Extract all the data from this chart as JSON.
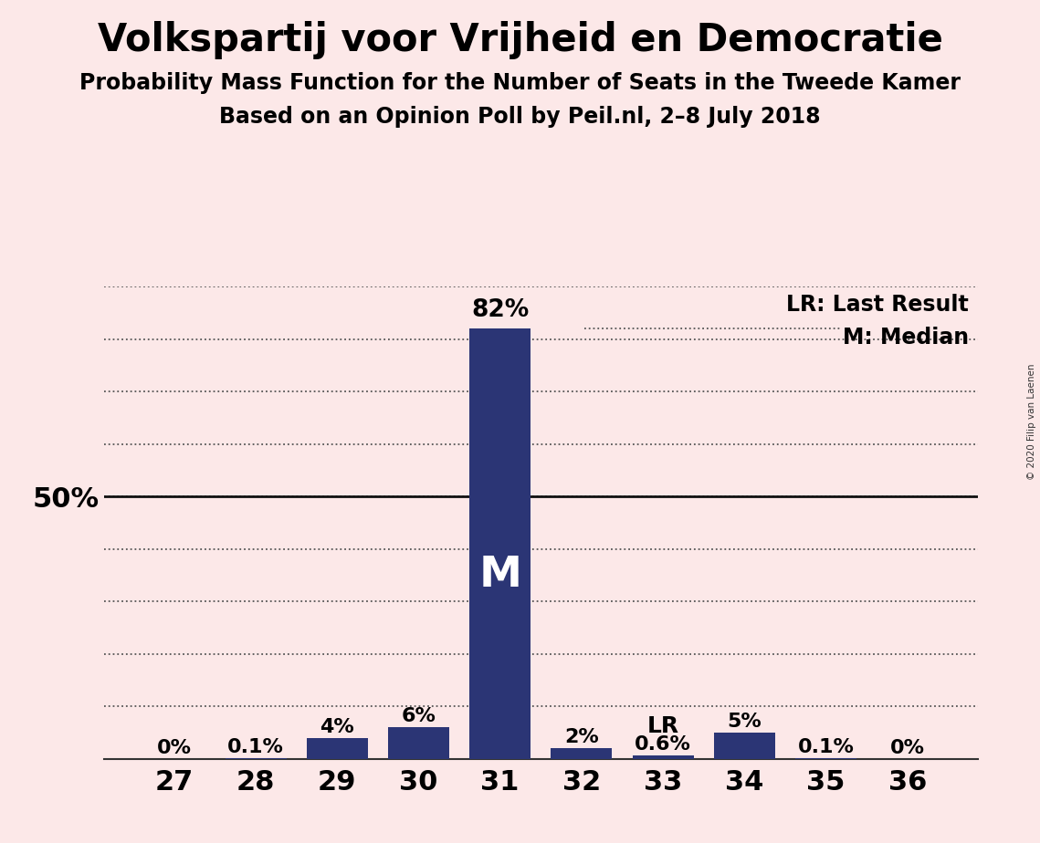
{
  "title": "Volkspartij voor Vrijheid en Democratie",
  "subtitle1": "Probability Mass Function for the Number of Seats in the Tweede Kamer",
  "subtitle2": "Based on an Opinion Poll by Peil.nl, 2–8 July 2018",
  "copyright": "© 2020 Filip van Laenen",
  "categories": [
    27,
    28,
    29,
    30,
    31,
    32,
    33,
    34,
    35,
    36
  ],
  "values": [
    0.0,
    0.1,
    4.0,
    6.0,
    82.0,
    2.0,
    0.6,
    5.0,
    0.1,
    0.0
  ],
  "bar_labels": [
    "0%",
    "0.1%",
    "4%",
    "6%",
    "82%",
    "2%",
    "0.6%",
    "5%",
    "0.1%",
    "0%"
  ],
  "bar_color": "#2b3575",
  "background_color": "#fce8e8",
  "median_seat": 31,
  "lr_seat": 33,
  "median_label": "M",
  "lr_label": "LR",
  "legend_lr": "LR: Last Result",
  "legend_m": "M: Median",
  "ylim": [
    0,
    90
  ],
  "ylabel_50": "50%",
  "title_fontsize": 30,
  "subtitle_fontsize": 17,
  "bar_label_fontsize": 16,
  "axis_fontsize": 20,
  "legend_fontsize": 17
}
